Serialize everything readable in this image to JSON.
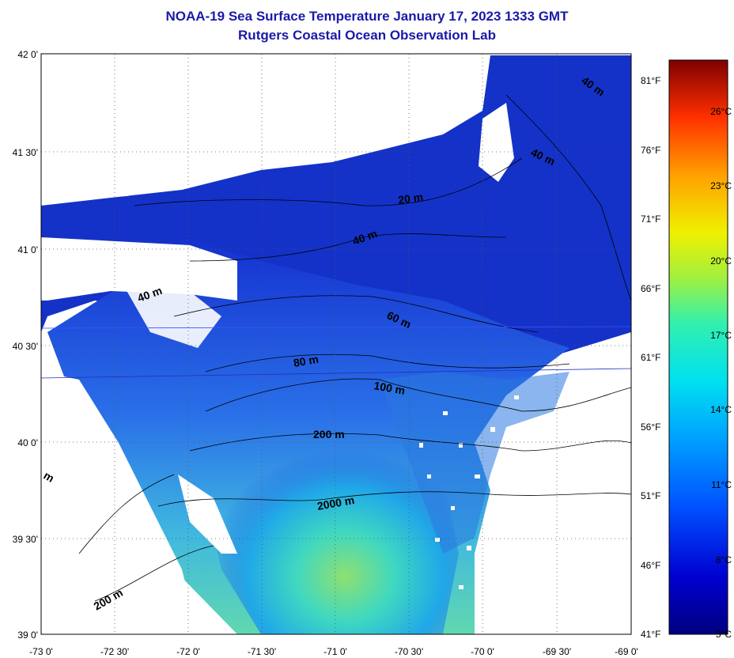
{
  "header": {
    "title": "NOAA-19 Sea Surface Temperature January 17, 2023 1333 GMT",
    "subtitle": "Rutgers Coastal Ocean Observation Lab"
  },
  "map": {
    "lat_labels": [
      "42 0'",
      "41 30'",
      "41 0'",
      "40 30'",
      "40 0'",
      "39 30'",
      "39 0'"
    ],
    "lon_labels": [
      "-73 0'",
      "-72 30'",
      "-72 0'",
      "-71 30'",
      "-71 0'",
      "-70 30'",
      "-70 0'",
      "-69 30'",
      "-69 0'"
    ],
    "contour_labels": [
      "20 m",
      "40 m",
      "40 m",
      "40 m",
      "60 m",
      "80 m",
      "100 m",
      "200 m",
      "2000 m",
      "200 m",
      "40 m",
      "m"
    ]
  },
  "colorbar": {
    "fahrenheit_labels": [
      "81°F",
      "76°F",
      "71°F",
      "66°F",
      "61°F",
      "56°F",
      "51°F",
      "46°F",
      "41°F"
    ],
    "celsius_labels": [
      "26°C",
      "23°C",
      "20°C",
      "17°C",
      "14°C",
      "11°C",
      "8°C",
      "5°C"
    ]
  },
  "colors": {
    "title": "#1a1aa8",
    "deep_blue": "#1226c4",
    "ocean_warm": "#7fe07a",
    "land": "#ffffff"
  }
}
